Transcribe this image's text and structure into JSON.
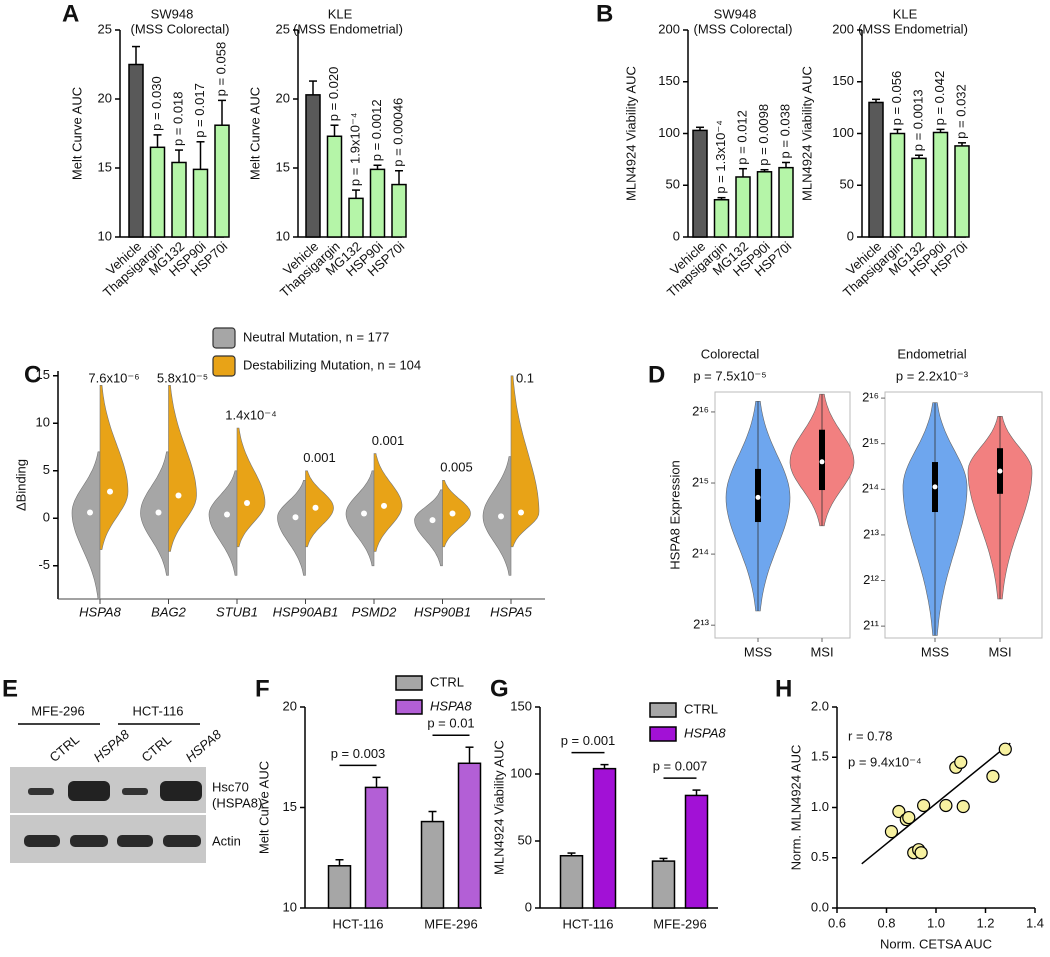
{
  "chart_data": [
    {
      "type": "bar",
      "panel": "A",
      "title": "SW948",
      "subtitle": "(MSS Colorectal)",
      "y_label": "Melt Curve AUC",
      "categories": [
        "Vehicle",
        "Thapsigargin",
        "MG132",
        "HSP90i",
        "HSP70i"
      ],
      "values": [
        22.5,
        16.5,
        15.4,
        14.9,
        18.1
      ],
      "errors": [
        1.3,
        0.9,
        0.9,
        2.0,
        1.8
      ],
      "annotations": [
        null,
        "p = 0.030",
        "p = 0.018",
        "p = 0.017",
        "p = 0.058"
      ],
      "colors": [
        "#595959",
        "#b5f5a8",
        "#b5f5a8",
        "#b5f5a8",
        "#b5f5a8"
      ],
      "ylim": [
        10,
        25
      ],
      "yticks": [
        10,
        15,
        20,
        25
      ]
    },
    {
      "type": "bar",
      "title": "KLE",
      "subtitle": "(MSS Endometrial)",
      "y_label": "Melt Curve AUC",
      "categories": [
        "Vehicle",
        "Thapsigargin",
        "MG132",
        "HSP90i",
        "HSP70i"
      ],
      "values": [
        20.3,
        17.3,
        12.8,
        14.9,
        13.8
      ],
      "errors": [
        1.0,
        0.8,
        0.6,
        0.3,
        1.0
      ],
      "annotations": [
        null,
        "p = 0.020",
        "p = 1.9x10⁻⁴",
        "p = 0.0012",
        "p = 0.00046"
      ],
      "colors": [
        "#595959",
        "#b5f5a8",
        "#b5f5a8",
        "#b5f5a8",
        "#b5f5a8"
      ],
      "ylim": [
        10,
        25
      ],
      "yticks": [
        10,
        15,
        20,
        25
      ]
    },
    {
      "type": "bar",
      "panel": "B",
      "title": "SW948",
      "subtitle": "(MSS Colorectal)",
      "y_label": "MLN4924 Viability AUC",
      "categories": [
        "Vehicle",
        "Thapsigargin",
        "MG132",
        "HSP90i",
        "HSP70i"
      ],
      "values": [
        103,
        36,
        58,
        63,
        67
      ],
      "errors": [
        3,
        2,
        8,
        2,
        5
      ],
      "annotations": [
        null,
        "p = 1.3x10⁻⁴",
        "p = 0.012",
        "p = 0.0098",
        "p = 0.038"
      ],
      "colors": [
        "#595959",
        "#b5f5a8",
        "#b5f5a8",
        "#b5f5a8",
        "#b5f5a8"
      ],
      "ylim": [
        0,
        200
      ],
      "yticks": [
        0,
        50,
        100,
        150,
        200
      ]
    },
    {
      "type": "bar",
      "title": "KLE",
      "subtitle": "(MSS Endometrial)",
      "y_label": "MLN4924 Viability AUC",
      "categories": [
        "Vehicle",
        "Thapsigargin",
        "MG132",
        "HSP90i",
        "HSP70i"
      ],
      "values": [
        130,
        100,
        76,
        101,
        88
      ],
      "errors": [
        3,
        4,
        3,
        3,
        3
      ],
      "annotations": [
        null,
        "p = 0.056",
        "p = 0.0013",
        "p = 0.042",
        "p = 0.032"
      ],
      "colors": [
        "#595959",
        "#b5f5a8",
        "#b5f5a8",
        "#b5f5a8",
        "#b5f5a8"
      ],
      "ylim": [
        0,
        200
      ],
      "yticks": [
        0,
        50,
        100,
        150,
        200
      ]
    },
    {
      "type": "violin",
      "split": true,
      "panel": "C",
      "y_label": "ΔBinding",
      "categories": [
        "HSPA8",
        "BAG2",
        "STUB1",
        "HSP90AB1",
        "PSMD2",
        "HSP90B1",
        "HSPA5"
      ],
      "series": [
        {
          "name": "Neutral Mutation, n = 177",
          "color": "#a6a6a6",
          "medians": [
            0.6,
            0.6,
            0.4,
            0.1,
            0.5,
            -0.2,
            0.2
          ],
          "mins": [
            -8.5,
            -6,
            -6,
            -6,
            -5,
            -5,
            -6
          ],
          "maxs": [
            7,
            7,
            5,
            4,
            5,
            3,
            6.5
          ]
        },
        {
          "name": "Destabilizing Mutation, n = 104",
          "color": "#e8a317",
          "medians": [
            2.8,
            2.4,
            1.6,
            1.1,
            1.3,
            0.5,
            0.6
          ],
          "mins": [
            -3.3,
            -3.5,
            -3,
            -3,
            -3.5,
            -3,
            -3
          ],
          "maxs": [
            14,
            14,
            9.5,
            5,
            6.8,
            4,
            15
          ]
        }
      ],
      "annotations": [
        "7.6x10⁻⁶",
        "5.8x10⁻⁵",
        "1.4x10⁻⁴",
        "0.001",
        "0.001",
        "0.005",
        "0.1"
      ],
      "ylim": [
        -8.5,
        15.5
      ],
      "yticks": [
        -5,
        0,
        5,
        10,
        15
      ]
    },
    {
      "type": "violin",
      "panel": "D",
      "title": "Colorectal",
      "subtitle": "p = 7.5x10⁻⁵",
      "y_label": "HSPA8 Expression",
      "log_base": 2,
      "categories": [
        "MSS",
        "MSI"
      ],
      "colors": [
        "#6ea6ee",
        "#f28080"
      ],
      "medians": [
        28500,
        40300
      ],
      "q1": [
        22400,
        30600
      ],
      "q3": [
        37600,
        55100
      ],
      "mins": [
        9410,
        21600
      ],
      "maxs": [
        72700,
        77900
      ],
      "ylim": [
        7230,
        79600
      ],
      "yticks": [
        {
          "value": 8192,
          "label": "2¹³"
        },
        {
          "value": 16384,
          "label": "2¹⁴"
        },
        {
          "value": 32768,
          "label": "2¹⁵"
        },
        {
          "value": 65536,
          "label": "2¹⁶"
        }
      ]
    },
    {
      "type": "violin",
      "title": "Endometrial",
      "subtitle": "p = 2.2x10⁻³",
      "log_base": 2,
      "categories": [
        "MSS",
        "MSI"
      ],
      "colors": [
        "#6ea6ee",
        "#f28080"
      ],
      "medians": [
        17000,
        21600
      ],
      "q1": [
        11600,
        15300
      ],
      "q3": [
        24800,
        30600
      ],
      "mins": [
        1780,
        3100
      ],
      "maxs": [
        61100,
        49700
      ],
      "ylim": [
        1710,
        71900
      ],
      "yticks": [
        {
          "value": 2048,
          "label": "2¹¹"
        },
        {
          "value": 4096,
          "label": "2¹²"
        },
        {
          "value": 8192,
          "label": "2¹³"
        },
        {
          "value": 16384,
          "label": "2¹⁴"
        },
        {
          "value": 32768,
          "label": "2¹⁵"
        },
        {
          "value": 65536,
          "label": "2¹⁶"
        }
      ]
    },
    {
      "type": "bar",
      "panel": "F",
      "y_label": "Melt Curve AUC",
      "categories": [
        "HCT-116",
        "MFE-296"
      ],
      "series": [
        {
          "name": "CTRL",
          "color": "#a6a6a6",
          "values": [
            12.1,
            14.3
          ],
          "errors": [
            0.3,
            0.5
          ]
        },
        {
          "name": "HSPA8",
          "color": "#b35fd6",
          "values": [
            16.0,
            17.2
          ],
          "errors": [
            0.5,
            0.8
          ]
        }
      ],
      "annotations": [
        "p = 0.003",
        "p = 0.01"
      ],
      "ylim": [
        10,
        20
      ],
      "yticks": [
        10,
        15,
        20
      ]
    },
    {
      "type": "bar",
      "panel": "G",
      "y_label": "MLN4924 Viability AUC",
      "categories": [
        "HCT-116",
        "MFE-296"
      ],
      "series": [
        {
          "name": "CTRL",
          "color": "#a6a6a6",
          "values": [
            39,
            35
          ],
          "errors": [
            2,
            2
          ]
        },
        {
          "name": "HSPA8",
          "color": "#a211d6",
          "values": [
            104,
            84
          ],
          "errors": [
            3,
            4
          ]
        }
      ],
      "annotations": [
        "p = 0.001",
        "p = 0.007"
      ],
      "ylim": [
        0,
        150
      ],
      "yticks": [
        0,
        50,
        100,
        150
      ]
    },
    {
      "type": "scatter",
      "panel": "H",
      "x_label": "Norm. CETSA AUC",
      "y_label": "Norm. MLN4924 AUC",
      "annotations": [
        "r = 0.78",
        "p = 9.4x10⁻⁴"
      ],
      "color": "#f7f1a0",
      "x": [
        0.82,
        0.85,
        0.88,
        0.89,
        0.91,
        0.93,
        0.94,
        0.95,
        1.04,
        1.08,
        1.1,
        1.11,
        1.23,
        1.28
      ],
      "y": [
        0.76,
        0.96,
        0.88,
        0.9,
        0.55,
        0.58,
        0.55,
        1.02,
        1.02,
        1.4,
        1.45,
        1.01,
        1.31,
        1.58
      ],
      "fit_line": {
        "x": [
          0.7,
          1.3
        ],
        "y": [
          0.44,
          1.64
        ]
      },
      "xlim": [
        0.6,
        1.4
      ],
      "ylim": [
        0,
        2
      ],
      "xticks": [
        0.6,
        0.8,
        {
          "value": 1,
          "label": "1.0"
        },
        1.2,
        1.4
      ],
      "yticks": [
        {
          "value": 0,
          "label": "0.0"
        },
        0.5,
        {
          "value": 1,
          "label": "1.0"
        },
        1.5,
        {
          "value": 2,
          "label": "2.0"
        }
      ]
    }
  ],
  "blot": {
    "panel": "E",
    "cell_lines": [
      "MFE-296",
      "HCT-116"
    ],
    "lanes": [
      "CTRL",
      "HSPA8",
      "CTRL",
      "HSPA8"
    ],
    "proteins": [
      "Hsc70",
      "(HSPA8)",
      "Actin"
    ]
  }
}
